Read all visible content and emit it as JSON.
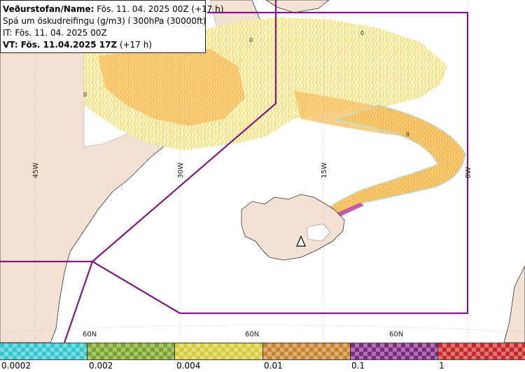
{
  "header": {
    "line1_label": "Veðurstofan/Name:",
    "line1_value": " Fös. 11. 04. 2025 00Z (+17 h)",
    "line2": "Spá um öskudreifingu (g/m3) í 300hPa (30000ft)",
    "line3": "IT: Fös. 11. 04. 2025 00Z",
    "line4_label": "VT: Fös. 11.04.2025 17Z",
    "line4_value": " (+17 h)"
  },
  "map": {
    "meridians": [
      "45W",
      "30W",
      "15W",
      "0W"
    ],
    "parallel_labels": [
      "60N",
      "60N",
      "60N"
    ],
    "zero_labels": [
      "0",
      "0",
      "0",
      "0"
    ],
    "colors": {
      "land": "#f2e2d4",
      "greenland_ice": "#ffffff",
      "ocean": "#ffffff",
      "boundary": "#7d1a7d",
      "ash_low": "#fbf3a0",
      "ash_mid": "#f9b55a",
      "ash_trace": "#8fe6ee",
      "ash_high": "#b8409c",
      "grid": "#aaaaaa"
    }
  },
  "legend": {
    "colors": [
      "#33c8cc",
      "#7da52c",
      "#d4cc3a",
      "#c9822e",
      "#7f2a7f",
      "#c82a2a"
    ],
    "ticks": [
      "0.0002",
      "0.002",
      "0.004",
      "0.01",
      "0.1",
      "1"
    ]
  }
}
